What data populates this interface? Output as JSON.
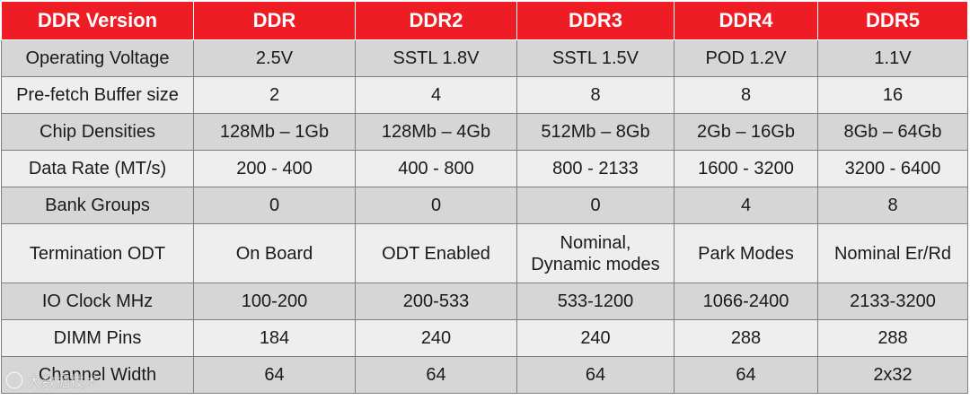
{
  "table": {
    "headers": [
      "DDR Version",
      "DDR",
      "DDR2",
      "DDR3",
      "DDR4",
      "DDR5"
    ],
    "rows": [
      [
        "Operating Voltage",
        "2.5V",
        "SSTL 1.8V",
        "SSTL 1.5V",
        "POD 1.2V",
        "1.1V"
      ],
      [
        "Pre-fetch Buffer size",
        "2",
        "4",
        "8",
        "8",
        "16"
      ],
      [
        "Chip Densities",
        "128Mb – 1Gb",
        "128Mb – 4Gb",
        "512Mb – 8Gb",
        "2Gb – 16Gb",
        "8Gb – 64Gb"
      ],
      [
        "Data Rate (MT/s)",
        "200 - 400",
        "400 - 800",
        "800 - 2133",
        "1600 - 3200",
        "3200 - 6400"
      ],
      [
        "Bank Groups",
        "0",
        "0",
        "0",
        "4",
        "8"
      ],
      [
        "Termination ODT",
        "On Board",
        "ODT Enabled",
        "Nominal,\nDynamic modes",
        "Park Modes",
        "Nominal Er/Rd"
      ],
      [
        "IO Clock MHz",
        "100-200",
        "200-533",
        "533-1200",
        "1066-2400",
        "2133-3200"
      ],
      [
        "DIMM Pins",
        "184",
        "240",
        "240",
        "288",
        "288"
      ],
      [
        "Channel Width",
        "64",
        "64",
        "64",
        "64",
        "2x32"
      ]
    ]
  },
  "colors": {
    "header_bg": "#ee1c25",
    "header_text": "#ffffff",
    "row_dark": "#d6d6d6",
    "row_light": "#eeeeee"
  },
  "watermark": {
    "icon": "watermark-logo-icon",
    "text": "大数据技术"
  }
}
